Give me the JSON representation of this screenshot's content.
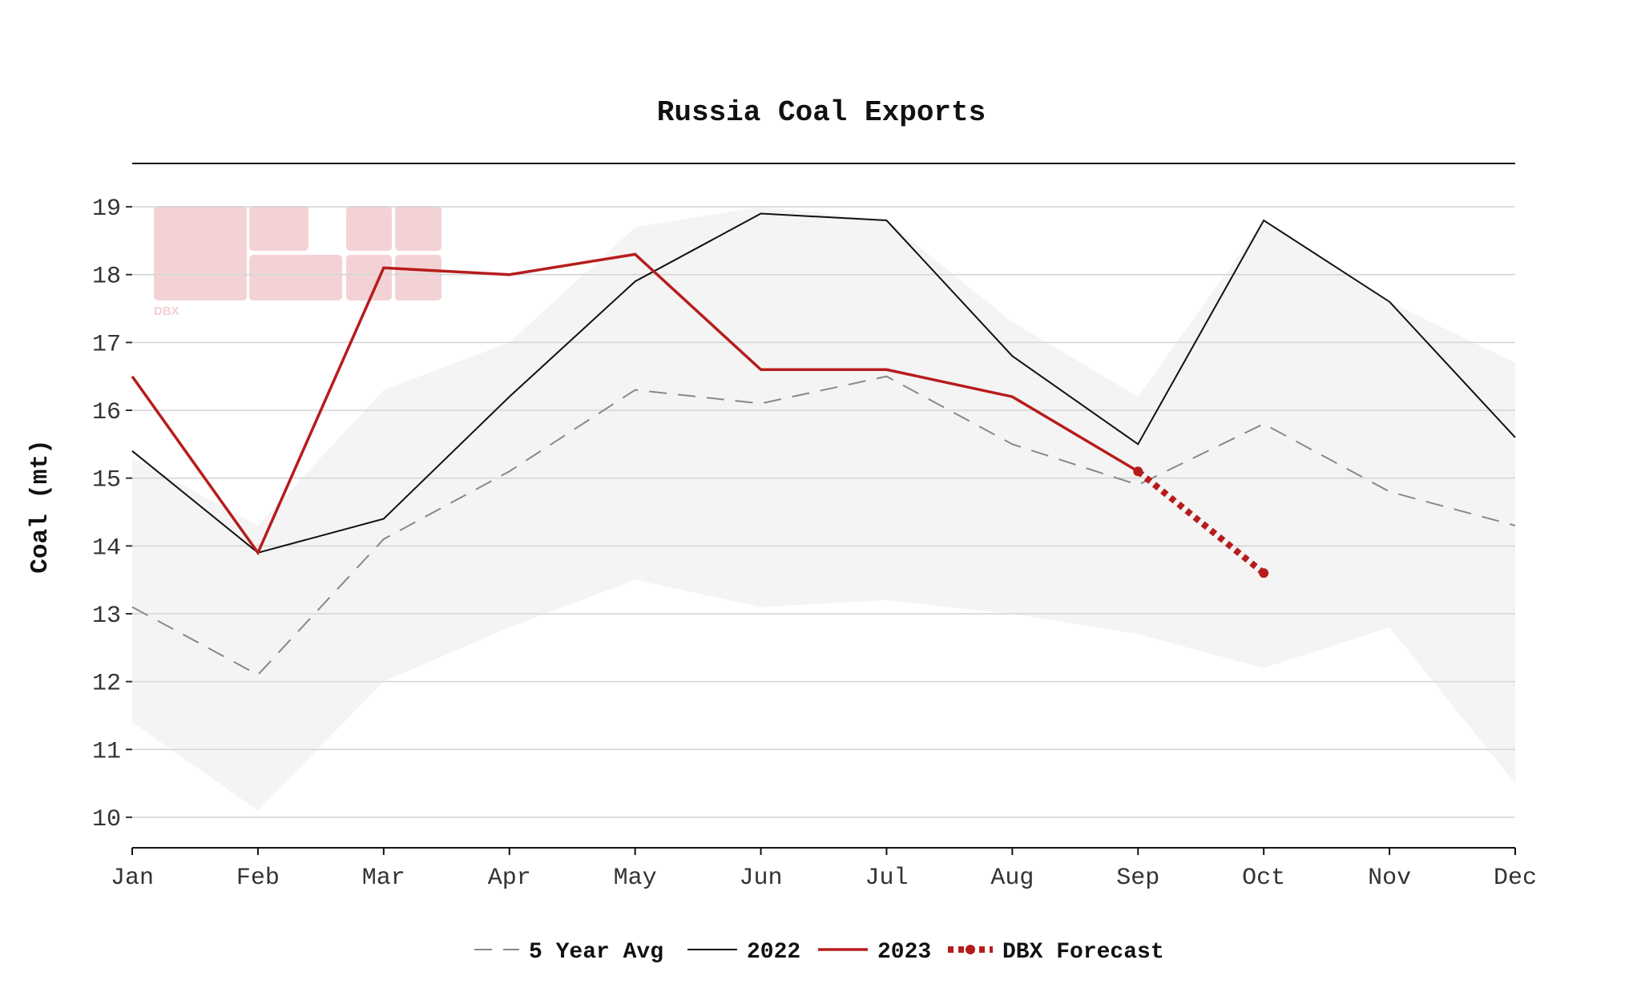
{
  "chart_data": {
    "type": "line",
    "title": "Russia Coal Exports",
    "xlabel": "",
    "ylabel": "Coal (mt)",
    "categories": [
      "Jan",
      "Feb",
      "Mar",
      "Apr",
      "May",
      "Jun",
      "Jul",
      "Aug",
      "Sep",
      "Oct",
      "Nov",
      "Dec"
    ],
    "yticks": [
      10,
      11,
      12,
      13,
      14,
      15,
      16,
      17,
      18,
      19
    ],
    "ylim": [
      9.55,
      19.45
    ],
    "grid": "horizontal",
    "legend_position": "bottom-center",
    "range_band": {
      "upper": [
        15.3,
        14.3,
        16.3,
        17.0,
        18.7,
        19.0,
        18.8,
        17.3,
        16.2,
        18.8,
        17.6,
        16.7
      ],
      "lower": [
        11.4,
        10.1,
        12.0,
        12.8,
        13.5,
        13.1,
        13.2,
        13.0,
        12.7,
        12.2,
        12.8,
        10.5
      ],
      "color": "#f4f4f4"
    },
    "series": [
      {
        "name": "5 Year Avg",
        "values": [
          13.1,
          12.1,
          14.1,
          15.1,
          16.3,
          16.1,
          16.5,
          15.5,
          14.9,
          15.8,
          14.8,
          14.3
        ],
        "color": "#888888",
        "style": "dashed"
      },
      {
        "name": "2022",
        "values": [
          15.4,
          13.9,
          14.4,
          16.2,
          17.9,
          18.9,
          18.8,
          16.8,
          15.5,
          18.8,
          17.6,
          15.6
        ],
        "color": "#111111",
        "style": "solid"
      },
      {
        "name": "2023",
        "values": [
          16.5,
          13.9,
          18.1,
          18.0,
          18.3,
          16.6,
          16.6,
          16.2,
          15.1,
          null,
          null,
          null
        ],
        "color": "#b71c1c",
        "style": "solid"
      },
      {
        "name": "DBX Forecast",
        "values": [
          null,
          null,
          null,
          null,
          null,
          null,
          null,
          null,
          15.1,
          13.6,
          null,
          null
        ],
        "color": "#b71c1c",
        "style": "dotted-marker"
      }
    ]
  },
  "watermark": {
    "text": "DBX",
    "color": "#f2cfd2"
  }
}
